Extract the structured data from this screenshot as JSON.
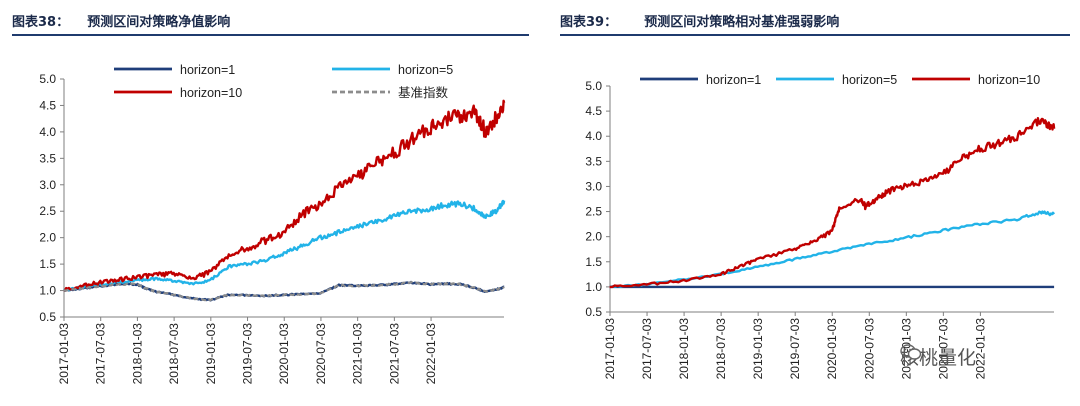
{
  "figure_left": {
    "title_label": "图表38：",
    "title_text": "预测区间对策略净值影响"
  },
  "figure_right": {
    "title_label": "图表39：",
    "title_text": "预测区间对策略相对基准强弱影响"
  },
  "watermark": {
    "text": "核桃量化"
  },
  "colors": {
    "h1": "#1f3e7a",
    "h5": "#22b3e8",
    "h10": "#c00000",
    "bench": "#8c8c8c",
    "axis": "#7f7f7f",
    "title_rule": "#1f3b6e"
  },
  "chart_data": [
    {
      "type": "line",
      "title": "预测区间对策略净值影响",
      "xlabel": "",
      "ylabel": "",
      "ylim": [
        0.5,
        5.0
      ],
      "yticks": [
        "5.0",
        "4.5",
        "4.0",
        "3.5",
        "3.0",
        "2.5",
        "2.0",
        "1.5",
        "1.0",
        "0.5"
      ],
      "xticks": [
        "2017-01-03",
        "2017-07-03",
        "2018-01-03",
        "2018-07-03",
        "2019-01-03",
        "2019-07-03",
        "2020-01-03",
        "2020-07-03",
        "2021-01-03",
        "2021-07-03",
        "2022-01-03"
      ],
      "x_range": [
        "2017-01-03",
        "2022-12-31"
      ],
      "legend_position": "top",
      "series": [
        {
          "name": "horizon=1",
          "style": "solid",
          "x": [
            2017.0,
            2017.25,
            2017.5,
            2017.75,
            2018.0,
            2018.1,
            2018.25,
            2018.5,
            2018.75,
            2019.0,
            2019.25,
            2019.5,
            2019.75,
            2020.0,
            2020.25,
            2020.5,
            2020.75,
            2021.0,
            2021.25,
            2021.5,
            2021.75,
            2022.0,
            2022.2,
            2022.4,
            2022.6,
            2022.75,
            2022.9,
            2023.0
          ],
          "values": [
            1.0,
            1.04,
            1.08,
            1.12,
            1.12,
            1.05,
            0.98,
            0.92,
            0.85,
            0.82,
            0.92,
            0.91,
            0.9,
            0.92,
            0.93,
            0.95,
            1.1,
            1.09,
            1.1,
            1.12,
            1.15,
            1.12,
            1.13,
            1.12,
            1.05,
            0.98,
            1.02,
            1.07
          ]
        },
        {
          "name": "horizon=5",
          "style": "solid",
          "x": [
            2017.0,
            2017.25,
            2017.5,
            2017.75,
            2018.0,
            2018.25,
            2018.5,
            2018.75,
            2019.0,
            2019.25,
            2019.5,
            2019.75,
            2020.0,
            2020.25,
            2020.5,
            2020.75,
            2021.0,
            2021.25,
            2021.5,
            2021.75,
            2022.0,
            2022.2,
            2022.4,
            2022.6,
            2022.75,
            2022.9,
            2023.0
          ],
          "values": [
            1.0,
            1.06,
            1.12,
            1.15,
            1.2,
            1.22,
            1.18,
            1.12,
            1.2,
            1.45,
            1.5,
            1.58,
            1.7,
            1.85,
            2.0,
            2.1,
            2.2,
            2.3,
            2.4,
            2.5,
            2.55,
            2.62,
            2.65,
            2.55,
            2.4,
            2.5,
            2.7
          ]
        },
        {
          "name": "horizon=10",
          "style": "solid",
          "x": [
            2017.0,
            2017.25,
            2017.5,
            2017.75,
            2018.0,
            2018.25,
            2018.5,
            2018.75,
            2019.0,
            2019.25,
            2019.5,
            2019.75,
            2020.0,
            2020.25,
            2020.5,
            2020.75,
            2021.0,
            2021.25,
            2021.5,
            2021.75,
            2022.0,
            2022.2,
            2022.4,
            2022.6,
            2022.75,
            2022.9,
            2023.0
          ],
          "values": [
            1.0,
            1.08,
            1.15,
            1.2,
            1.25,
            1.3,
            1.32,
            1.22,
            1.35,
            1.65,
            1.8,
            1.95,
            2.1,
            2.45,
            2.6,
            2.95,
            3.15,
            3.4,
            3.6,
            3.85,
            4.1,
            4.25,
            4.3,
            4.35,
            4.0,
            4.3,
            4.55
          ]
        },
        {
          "name": "基准指数",
          "style": "dashed",
          "x": [
            2017.0,
            2017.25,
            2017.5,
            2017.75,
            2018.0,
            2018.1,
            2018.25,
            2018.5,
            2018.75,
            2019.0,
            2019.25,
            2019.5,
            2019.75,
            2020.0,
            2020.25,
            2020.5,
            2020.75,
            2021.0,
            2021.25,
            2021.5,
            2021.75,
            2022.0,
            2022.2,
            2022.4,
            2022.6,
            2022.75,
            2022.9,
            2023.0
          ],
          "values": [
            1.0,
            1.04,
            1.08,
            1.12,
            1.12,
            1.05,
            0.98,
            0.92,
            0.85,
            0.82,
            0.92,
            0.91,
            0.9,
            0.92,
            0.93,
            0.95,
            1.1,
            1.09,
            1.1,
            1.12,
            1.15,
            1.12,
            1.13,
            1.12,
            1.05,
            0.98,
            1.02,
            1.07
          ]
        }
      ]
    },
    {
      "type": "line",
      "title": "预测区间对策略相对基准强弱影响",
      "xlabel": "",
      "ylabel": "",
      "ylim": [
        0.5,
        5.0
      ],
      "yticks": [
        "5.0",
        "4.5",
        "4.0",
        "3.5",
        "3.0",
        "2.5",
        "2.0",
        "1.5",
        "1.0",
        "0.5"
      ],
      "xticks": [
        "2017-01-03",
        "2017-07-03",
        "2018-01-03",
        "2018-07-03",
        "2019-01-03",
        "2019-07-03",
        "2020-01-03",
        "2020-07-03",
        "2021-01-03",
        "2021-07-03",
        "2022-01-03"
      ],
      "x_range": [
        "2017-01-03",
        "2022-12-31"
      ],
      "legend_position": "top",
      "series": [
        {
          "name": "horizon=1",
          "style": "solid",
          "x": [
            2017.0,
            2023.0
          ],
          "values": [
            1.0,
            1.0
          ]
        },
        {
          "name": "horizon=5",
          "style": "solid",
          "x": [
            2017.0,
            2017.5,
            2018.0,
            2018.5,
            2019.0,
            2019.5,
            2020.0,
            2020.5,
            2021.0,
            2021.5,
            2022.0,
            2022.5,
            2022.8,
            2023.0
          ],
          "values": [
            1.0,
            1.05,
            1.15,
            1.25,
            1.4,
            1.55,
            1.7,
            1.85,
            1.98,
            2.12,
            2.25,
            2.35,
            2.48,
            2.45
          ]
        },
        {
          "name": "horizon=10",
          "style": "solid",
          "x": [
            2017.0,
            2017.5,
            2018.0,
            2018.5,
            2018.75,
            2019.0,
            2019.5,
            2019.75,
            2020.0,
            2020.1,
            2020.4,
            2020.45,
            2020.6,
            2020.75,
            2021.0,
            2021.25,
            2021.5,
            2021.75,
            2022.0,
            2022.25,
            2022.5,
            2022.75,
            2022.9,
            2023.0
          ],
          "values": [
            1.0,
            1.05,
            1.12,
            1.25,
            1.4,
            1.55,
            1.75,
            1.9,
            2.1,
            2.55,
            2.75,
            2.6,
            2.75,
            2.9,
            3.0,
            3.1,
            3.25,
            3.55,
            3.75,
            3.85,
            4.0,
            4.3,
            4.25,
            4.15
          ]
        }
      ]
    }
  ]
}
